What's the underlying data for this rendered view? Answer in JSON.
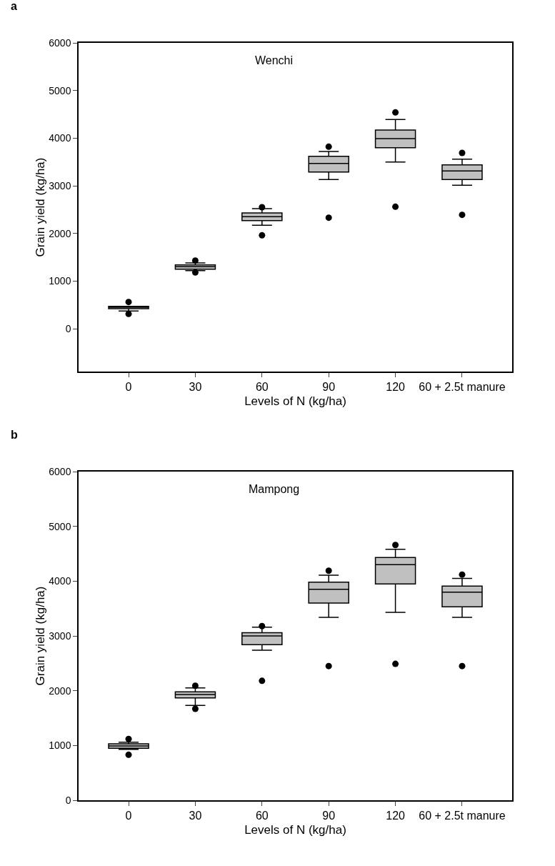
{
  "chart_data": [
    {
      "type": "box",
      "title": "a",
      "subtitle": "Wenchi",
      "xlabel": "Levels of N (kg/ha)",
      "ylabel": "Grain yield (kg/ha)",
      "categories": [
        "0",
        "30",
        "60",
        "90",
        "120",
        "60 + 2.5t manure"
      ],
      "color": "#c0c0c0",
      "boxes": [
        {
          "low": 370,
          "q1": 420,
          "median": 450,
          "q3": 470,
          "high": 470,
          "outliers": [
            560,
            310
          ]
        },
        {
          "low": 1220,
          "q1": 1250,
          "median": 1300,
          "q3": 1340,
          "high": 1380,
          "outliers": [
            1430,
            1180
          ]
        },
        {
          "low": 2170,
          "q1": 2270,
          "median": 2350,
          "q3": 2430,
          "high": 2520,
          "outliers": [
            2550,
            1960
          ]
        },
        {
          "low": 3130,
          "q1": 3290,
          "median": 3470,
          "q3": 3620,
          "high": 3720,
          "outliers": [
            3820,
            2330
          ]
        },
        {
          "low": 3500,
          "q1": 3800,
          "median": 3990,
          "q3": 4170,
          "high": 4390,
          "outliers": [
            4540,
            2560
          ]
        },
        {
          "low": 3010,
          "q1": 3130,
          "median": 3310,
          "q3": 3440,
          "high": 3560,
          "outliers": [
            3690,
            2390
          ]
        }
      ],
      "ylim": [
        -900,
        6000
      ],
      "yticks": [
        0,
        1000,
        2000,
        3000,
        4000,
        5000,
        6000
      ],
      "grid": false,
      "marker": "circle"
    },
    {
      "type": "box",
      "title": "b",
      "subtitle": "Mampong",
      "xlabel": "Levels of N (kg/ha)",
      "ylabel": "Grain yield (kg/ha)",
      "categories": [
        "0",
        "30",
        "60",
        "90",
        "120",
        "60 + 2.5t manure"
      ],
      "color": "#c0c0c0",
      "boxes": [
        {
          "low": 930,
          "q1": 950,
          "median": 990,
          "q3": 1030,
          "high": 1060,
          "outliers": [
            1120,
            830
          ]
        },
        {
          "low": 1730,
          "q1": 1870,
          "median": 1930,
          "q3": 1980,
          "high": 2050,
          "outliers": [
            2090,
            1670
          ]
        },
        {
          "low": 2740,
          "q1": 2840,
          "median": 3000,
          "q3": 3060,
          "high": 3160,
          "outliers": [
            3180,
            2180
          ]
        },
        {
          "low": 3340,
          "q1": 3600,
          "median": 3850,
          "q3": 3980,
          "high": 4110,
          "outliers": [
            4190,
            2450
          ]
        },
        {
          "low": 3430,
          "q1": 3950,
          "median": 4300,
          "q3": 4430,
          "high": 4580,
          "outliers": [
            4660,
            2490
          ]
        },
        {
          "low": 3340,
          "q1": 3530,
          "median": 3800,
          "q3": 3910,
          "high": 4050,
          "outliers": [
            4120,
            2450
          ]
        }
      ],
      "ylim": [
        0,
        6000
      ],
      "yticks": [
        0,
        1000,
        2000,
        3000,
        4000,
        5000,
        6000
      ],
      "grid": false,
      "marker": "circle"
    }
  ]
}
